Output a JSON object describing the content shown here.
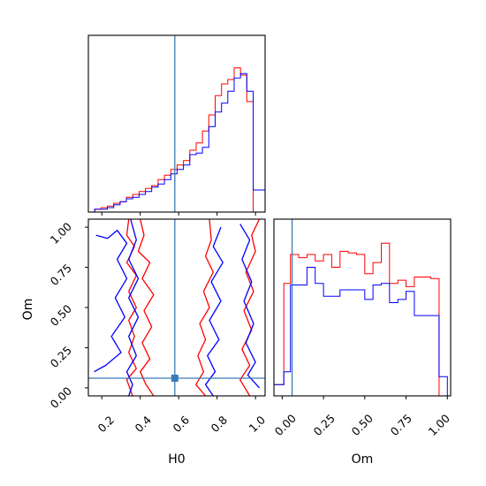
{
  "chart_data": [
    {
      "type": "histogram",
      "panel": "H0 marginal",
      "xlim": [
        0.13,
        1.05
      ],
      "ylim": [
        0,
        1.2
      ],
      "truth_line": 0.58,
      "bin_edges": [
        0.13,
        0.163,
        0.196,
        0.229,
        0.262,
        0.295,
        0.328,
        0.361,
        0.394,
        0.427,
        0.46,
        0.493,
        0.526,
        0.559,
        0.592,
        0.625,
        0.658,
        0.691,
        0.724,
        0.757,
        0.79,
        0.823,
        0.856,
        0.889,
        0.922,
        0.955,
        0.988,
        1.021,
        1.05
      ],
      "series": [
        {
          "color": "#ff0000",
          "values": [
            0,
            0.02,
            0.03,
            0.04,
            0.06,
            0.07,
            0.1,
            0.12,
            0.14,
            0.16,
            0.18,
            0.22,
            0.25,
            0.29,
            0.32,
            0.35,
            0.42,
            0.47,
            0.55,
            0.66,
            0.79,
            0.87,
            0.9,
            0.98,
            0.93,
            0.75,
            0,
            0
          ]
        },
        {
          "color": "#0000ff",
          "values": [
            0,
            0.02,
            0.02,
            0.03,
            0.05,
            0.07,
            0.09,
            0.1,
            0.12,
            0.14,
            0.17,
            0.19,
            0.22,
            0.26,
            0.29,
            0.32,
            0.39,
            0.4,
            0.44,
            0.58,
            0.68,
            0.74,
            0.82,
            0.91,
            0.94,
            0.82,
            0.15,
            0.15
          ]
        }
      ],
      "xticks": [
        "0.2",
        "0.4",
        "0.6",
        "0.8",
        "1.0"
      ]
    },
    {
      "type": "histogram",
      "panel": "Om marginal",
      "xlim": [
        -0.05,
        1.02
      ],
      "ylim": [
        0,
        1.1
      ],
      "truth_line": 0.06,
      "bin_edges": [
        -0.05,
        0.01,
        0.05,
        0.1,
        0.15,
        0.2,
        0.25,
        0.3,
        0.35,
        0.4,
        0.45,
        0.5,
        0.55,
        0.6,
        0.65,
        0.7,
        0.75,
        0.8,
        0.85,
        0.9,
        0.95,
        1.0
      ],
      "series": [
        {
          "color": "#ff0000",
          "values": [
            0.07,
            0.7,
            0.88,
            0.86,
            0.88,
            0.84,
            0.88,
            0.8,
            0.9,
            0.89,
            0.88,
            0.76,
            0.83,
            0.95,
            0.7,
            0.72,
            0.68,
            0.74,
            0.74,
            0.73,
            0
          ]
        },
        {
          "color": "#0000ff",
          "values": [
            0.07,
            0.15,
            0.69,
            0.69,
            0.8,
            0.7,
            0.62,
            0.62,
            0.66,
            0.66,
            0.66,
            0.6,
            0.69,
            0.7,
            0.58,
            0.6,
            0.65,
            0.5,
            0.5,
            0.5,
            0.12
          ]
        }
      ],
      "xlabel": "Om",
      "xticks": [
        "0.00",
        "0.25",
        "0.50",
        "0.75",
        "1.00"
      ]
    },
    {
      "type": "contour",
      "panel": "H0 vs Om",
      "xlim": [
        0.13,
        1.05
      ],
      "ylim": [
        -0.05,
        1.05
      ],
      "truth_point": [
        0.58,
        0.06
      ],
      "xlabel": "H0",
      "ylabel": "Om",
      "xticks": [
        "0.2",
        "0.4",
        "0.6",
        "0.8",
        "1.0"
      ],
      "yticks": [
        "0.00",
        "0.25",
        "0.50",
        "0.75",
        "1.00"
      ],
      "series": [
        {
          "color": "#ff0000",
          "contours": [
            [
              [
                0.34,
                1.05
              ],
              [
                0.33,
                0.95
              ],
              [
                0.37,
                0.88
              ],
              [
                0.33,
                0.78
              ],
              [
                0.38,
                0.7
              ],
              [
                0.34,
                0.6
              ],
              [
                0.38,
                0.5
              ],
              [
                0.34,
                0.42
              ],
              [
                0.37,
                0.32
              ],
              [
                0.34,
                0.22
              ],
              [
                0.38,
                0.12
              ],
              [
                0.33,
                0.05
              ],
              [
                0.36,
                -0.05
              ]
            ],
            [
              [
                0.4,
                1.05
              ],
              [
                0.42,
                0.95
              ],
              [
                0.39,
                0.85
              ],
              [
                0.45,
                0.78
              ],
              [
                0.41,
                0.68
              ],
              [
                0.47,
                0.58
              ],
              [
                0.42,
                0.48
              ],
              [
                0.46,
                0.38
              ],
              [
                0.41,
                0.28
              ],
              [
                0.45,
                0.18
              ],
              [
                0.4,
                0.1
              ],
              [
                0.43,
                0.02
              ],
              [
                0.47,
                -0.05
              ]
            ],
            [
              [
                0.76,
                1.05
              ],
              [
                0.77,
                0.92
              ],
              [
                0.74,
                0.82
              ],
              [
                0.78,
                0.72
              ],
              [
                0.73,
                0.6
              ],
              [
                0.76,
                0.5
              ],
              [
                0.71,
                0.4
              ],
              [
                0.74,
                0.3
              ],
              [
                0.7,
                0.2
              ],
              [
                0.73,
                0.1
              ],
              [
                0.69,
                0.02
              ],
              [
                0.74,
                -0.05
              ]
            ],
            [
              [
                1.02,
                1.05
              ],
              [
                0.98,
                0.95
              ],
              [
                1.0,
                0.85
              ],
              [
                0.95,
                0.72
              ],
              [
                0.99,
                0.6
              ],
              [
                0.94,
                0.48
              ],
              [
                0.98,
                0.36
              ],
              [
                0.93,
                0.24
              ],
              [
                0.97,
                0.14
              ],
              [
                0.92,
                0.05
              ],
              [
                0.97,
                -0.05
              ]
            ]
          ]
        },
        {
          "color": "#0000ff",
          "contours": [
            [
              [
                0.17,
                0.95
              ],
              [
                0.23,
                0.93
              ],
              [
                0.28,
                0.98
              ],
              [
                0.33,
                0.9
              ],
              [
                0.28,
                0.8
              ],
              [
                0.33,
                0.68
              ],
              [
                0.27,
                0.56
              ],
              [
                0.32,
                0.44
              ],
              [
                0.25,
                0.32
              ],
              [
                0.3,
                0.22
              ],
              [
                0.22,
                0.14
              ],
              [
                0.16,
                0.1
              ]
            ],
            [
              [
                0.35,
                1.05
              ],
              [
                0.38,
                0.92
              ],
              [
                0.34,
                0.8
              ],
              [
                0.39,
                0.68
              ],
              [
                0.34,
                0.56
              ],
              [
                0.39,
                0.44
              ],
              [
                0.34,
                0.32
              ],
              [
                0.38,
                0.2
              ],
              [
                0.33,
                0.1
              ],
              [
                0.36,
                0.02
              ],
              [
                0.34,
                -0.05
              ]
            ],
            [
              [
                0.82,
                1.0
              ],
              [
                0.78,
                0.88
              ],
              [
                0.83,
                0.78
              ],
              [
                0.77,
                0.66
              ],
              [
                0.82,
                0.54
              ],
              [
                0.76,
                0.42
              ],
              [
                0.81,
                0.3
              ],
              [
                0.75,
                0.2
              ],
              [
                0.79,
                0.1
              ],
              [
                0.74,
                0.02
              ],
              [
                0.78,
                -0.05
              ]
            ],
            [
              [
                0.92,
                1.02
              ],
              [
                0.97,
                0.92
              ],
              [
                0.93,
                0.8
              ],
              [
                0.98,
                0.66
              ],
              [
                0.94,
                0.54
              ],
              [
                0.99,
                0.4
              ],
              [
                0.95,
                0.28
              ],
              [
                1.0,
                0.16
              ],
              [
                0.96,
                0.08
              ],
              [
                1.02,
                0.0
              ]
            ]
          ]
        }
      ]
    }
  ]
}
